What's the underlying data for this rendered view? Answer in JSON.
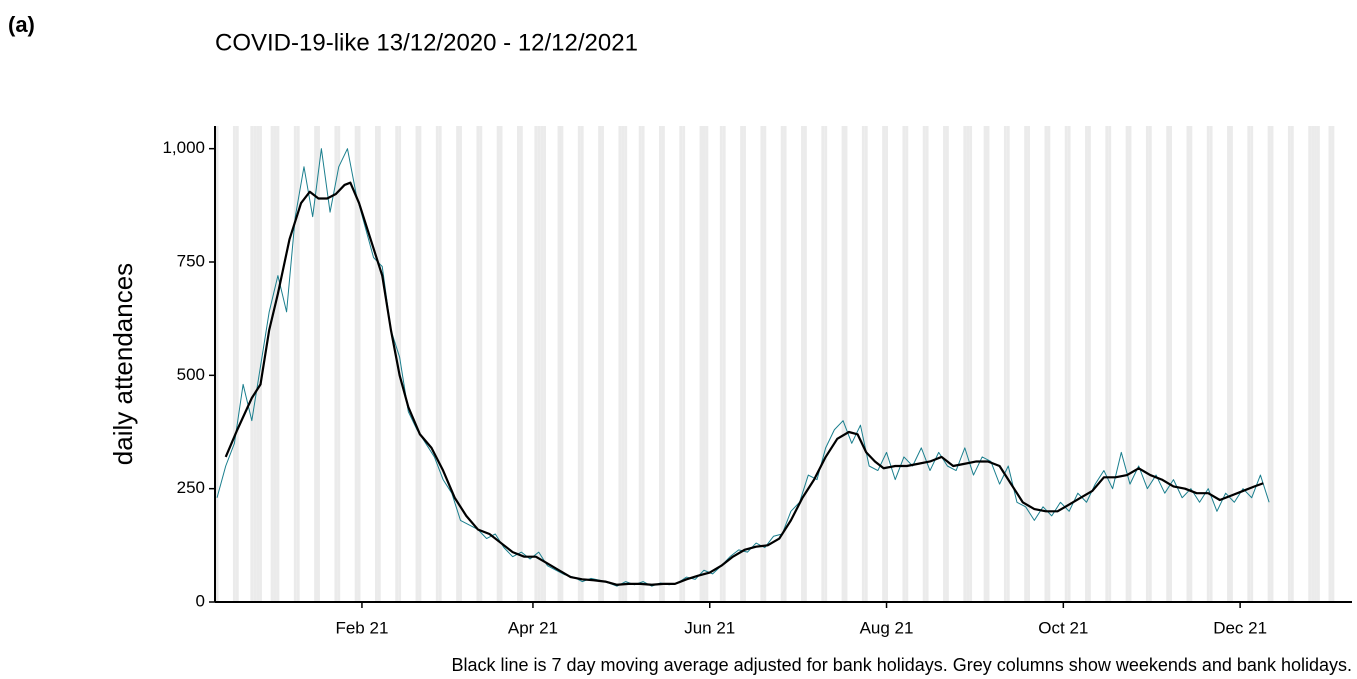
{
  "panel_label": "(a)",
  "caption": "Black line is 7 day moving average adjusted for bank holidays. Grey columns show weekends and bank holidays.",
  "chart_data": {
    "type": "line",
    "title": "COVID-19-like 13/12/2020 - 12/12/2021",
    "ylabel": "daily attendances",
    "xlim": [
      -0.7,
      391.6
    ],
    "ylim": [
      0,
      1050
    ],
    "xticks": [
      {
        "value": 50,
        "label": "Feb 21"
      },
      {
        "value": 109,
        "label": "Apr 21"
      },
      {
        "value": 170,
        "label": "Jun 21"
      },
      {
        "value": 231,
        "label": "Aug 21"
      },
      {
        "value": 292,
        "label": "Oct 21"
      },
      {
        "value": 353,
        "label": "Dec 21"
      }
    ],
    "yticks": [
      0,
      250,
      500,
      750,
      {
        "value": 1000,
        "label": "1,000"
      }
    ],
    "grid": false,
    "shade_color": "#ebebeb",
    "shaded_days": [
      0,
      6,
      7,
      12,
      13,
      14,
      15,
      19,
      20,
      21,
      27,
      28,
      34,
      35,
      41,
      42,
      48,
      49,
      55,
      56,
      62,
      63,
      69,
      70,
      76,
      77,
      83,
      84,
      90,
      91,
      97,
      98,
      104,
      105,
      110,
      111,
      112,
      113,
      118,
      119,
      125,
      126,
      132,
      133,
      139,
      140,
      141,
      146,
      147,
      153,
      154,
      160,
      161,
      167,
      168,
      169,
      174,
      175,
      181,
      182,
      188,
      189,
      195,
      196,
      202,
      203,
      209,
      210,
      216,
      217,
      223,
      224,
      230,
      231,
      237,
      238,
      244,
      245,
      251,
      252,
      258,
      259,
      260,
      265,
      266,
      272,
      273,
      279,
      280,
      286,
      287,
      293,
      294,
      300,
      301,
      307,
      308,
      314,
      315,
      321,
      322,
      328,
      329,
      335,
      336,
      342,
      343,
      349,
      350,
      356,
      357,
      363,
      364,
      370,
      371,
      377,
      378,
      379,
      380,
      384,
      385
    ],
    "series": [
      {
        "color": "#1b7f8e",
        "width": 1,
        "x": [
          0,
          3,
          6,
          9,
          12,
          15,
          18,
          21,
          24,
          27,
          30,
          33,
          36,
          39,
          42,
          45,
          48,
          51,
          54,
          57,
          60,
          63,
          66,
          69,
          72,
          75,
          78,
          81,
          84,
          87,
          90,
          93,
          96,
          99,
          102,
          105,
          108,
          111,
          114,
          117,
          120,
          123,
          126,
          129,
          132,
          135,
          138,
          141,
          144,
          147,
          150,
          153,
          156,
          159,
          162,
          165,
          168,
          171,
          174,
          177,
          180,
          183,
          186,
          189,
          192,
          195,
          198,
          201,
          204,
          207,
          210,
          213,
          216,
          219,
          222,
          225,
          228,
          231,
          234,
          237,
          240,
          243,
          246,
          249,
          252,
          255,
          258,
          261,
          264,
          267,
          270,
          273,
          276,
          279,
          282,
          285,
          288,
          291,
          294,
          297,
          300,
          303,
          306,
          309,
          312,
          315,
          318,
          321,
          324,
          327,
          330,
          333,
          336,
          339,
          342,
          345,
          348,
          351,
          354,
          357,
          360,
          363
        ],
        "values": [
          230,
          300,
          350,
          480,
          400,
          520,
          640,
          720,
          640,
          850,
          960,
          850,
          1000,
          860,
          960,
          1000,
          900,
          830,
          760,
          740,
          600,
          540,
          420,
          380,
          350,
          320,
          270,
          240,
          180,
          170,
          160,
          140,
          150,
          120,
          100,
          110,
          95,
          110,
          80,
          70,
          60,
          55,
          45,
          52,
          48,
          42,
          35,
          45,
          38,
          45,
          35,
          42,
          38,
          42,
          55,
          50,
          70,
          62,
          80,
          100,
          115,
          110,
          130,
          120,
          145,
          150,
          200,
          220,
          280,
          270,
          340,
          380,
          400,
          350,
          390,
          300,
          290,
          330,
          270,
          320,
          300,
          340,
          290,
          330,
          300,
          290,
          340,
          280,
          320,
          310,
          260,
          300,
          220,
          210,
          180,
          210,
          190,
          220,
          200,
          240,
          220,
          260,
          290,
          250,
          330,
          260,
          300,
          250,
          280,
          240,
          270,
          230,
          250,
          220,
          250,
          200,
          240,
          220,
          250,
          230,
          280,
          220
        ]
      },
      {
        "color": "#000000",
        "width": 2.2,
        "x": [
          3,
          7,
          12,
          15,
          18,
          21,
          25,
          29,
          32,
          35,
          38,
          41,
          44,
          46,
          49,
          53,
          57,
          60,
          63,
          66,
          70,
          74,
          78,
          82,
          86,
          90,
          94,
          98,
          102,
          106,
          110,
          114,
          118,
          122,
          126,
          130,
          134,
          138,
          142,
          146,
          150,
          154,
          158,
          162,
          166,
          170,
          174,
          178,
          182,
          186,
          190,
          194,
          198,
          202,
          206,
          210,
          214,
          218,
          221,
          224,
          227,
          230,
          234,
          238,
          242,
          246,
          250,
          254,
          258,
          262,
          266,
          270,
          274,
          278,
          282,
          286,
          290,
          294,
          298,
          302,
          306,
          310,
          314,
          318,
          322,
          326,
          330,
          334,
          338,
          342,
          346,
          350,
          354,
          358,
          361
        ],
        "values": [
          320,
          380,
          450,
          480,
          600,
          680,
          800,
          880,
          905,
          890,
          890,
          900,
          920,
          925,
          880,
          800,
          720,
          600,
          500,
          430,
          370,
          340,
          290,
          230,
          190,
          160,
          150,
          130,
          110,
          100,
          100,
          85,
          70,
          55,
          50,
          48,
          45,
          38,
          40,
          40,
          38,
          40,
          40,
          50,
          58,
          65,
          80,
          100,
          115,
          122,
          125,
          140,
          180,
          230,
          270,
          320,
          360,
          375,
          370,
          330,
          310,
          295,
          300,
          300,
          305,
          310,
          320,
          300,
          305,
          310,
          310,
          300,
          260,
          220,
          205,
          200,
          200,
          215,
          230,
          245,
          275,
          275,
          280,
          295,
          280,
          270,
          255,
          250,
          240,
          240,
          225,
          235,
          245,
          255,
          262
        ]
      }
    ]
  }
}
